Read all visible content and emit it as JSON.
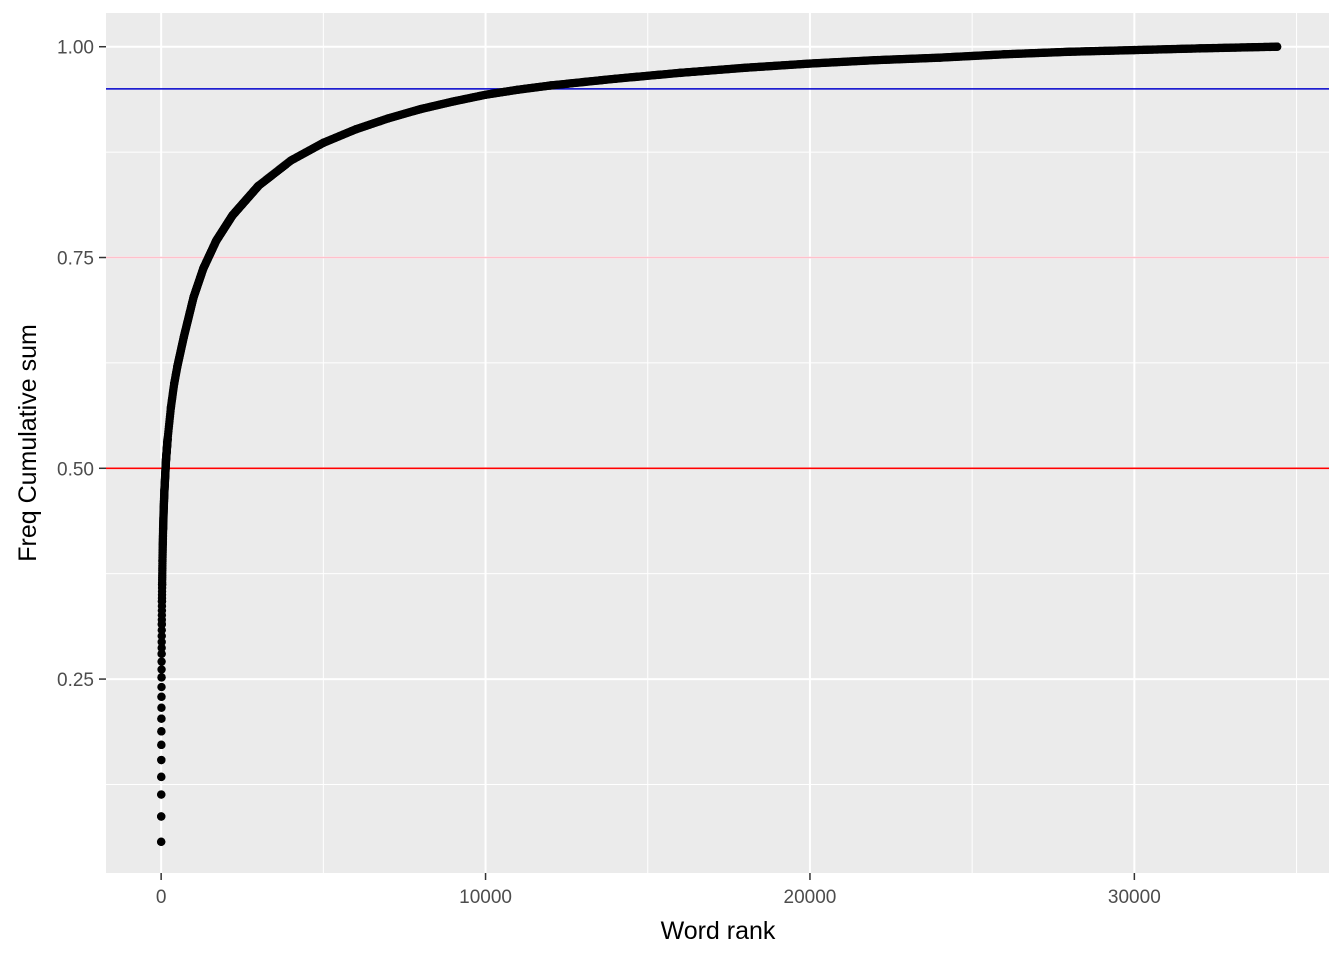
{
  "chart_data": {
    "type": "scatter",
    "xlabel": "Word rank",
    "ylabel": "Freq Cumulative sum",
    "xlim": [
      -1700,
      36000
    ],
    "ylim": [
      0.02,
      1.04
    ],
    "x_ticks": [
      {
        "value": 0,
        "label": "0"
      },
      {
        "value": 10000,
        "label": "10000"
      },
      {
        "value": 20000,
        "label": "20000"
      },
      {
        "value": 30000,
        "label": "30000"
      }
    ],
    "x_minor_ticks": [
      5000,
      15000,
      25000,
      35000
    ],
    "y_ticks": [
      {
        "value": 0.25,
        "label": "0.25"
      },
      {
        "value": 0.5,
        "label": "0.50"
      },
      {
        "value": 0.75,
        "label": "0.75"
      },
      {
        "value": 1.0,
        "label": "1.00"
      }
    ],
    "y_minor_ticks": [
      0.125,
      0.375,
      0.625,
      0.875
    ],
    "grid": true,
    "panel_background": "#ebebeb",
    "grid_color": "#ffffff",
    "reference_lines": [
      {
        "y": 0.95,
        "color": "#0000cd"
      },
      {
        "y": 0.75,
        "color": "#ffc0cb"
      },
      {
        "y": 0.5,
        "color": "#ff0000"
      }
    ],
    "point_color": "#000000",
    "x_max": 34400,
    "series": [
      {
        "points": [
          [
            1,
            0.057
          ],
          [
            2,
            0.087
          ],
          [
            3,
            0.113
          ],
          [
            4,
            0.134
          ],
          [
            5,
            0.154
          ],
          [
            6,
            0.172
          ],
          [
            7,
            0.188
          ],
          [
            8,
            0.203
          ],
          [
            10,
            0.229
          ],
          [
            12,
            0.252
          ],
          [
            15,
            0.28
          ],
          [
            20,
            0.315
          ],
          [
            25,
            0.342
          ],
          [
            30,
            0.362
          ],
          [
            40,
            0.39
          ],
          [
            50,
            0.41
          ],
          [
            60,
            0.428
          ],
          [
            80,
            0.453
          ],
          [
            100,
            0.473
          ],
          [
            150,
            0.51
          ],
          [
            200,
            0.535
          ],
          [
            300,
            0.572
          ],
          [
            400,
            0.6
          ],
          [
            500,
            0.621
          ],
          [
            700,
            0.656
          ],
          [
            1000,
            0.703
          ],
          [
            1300,
            0.737
          ],
          [
            1700,
            0.77
          ],
          [
            2200,
            0.8
          ],
          [
            3000,
            0.835
          ],
          [
            4000,
            0.865
          ],
          [
            5000,
            0.886
          ],
          [
            6000,
            0.902
          ],
          [
            7000,
            0.915
          ],
          [
            8000,
            0.926
          ],
          [
            9000,
            0.935
          ],
          [
            10000,
            0.943
          ],
          [
            11000,
            0.949
          ],
          [
            12000,
            0.954
          ],
          [
            14000,
            0.962
          ],
          [
            16000,
            0.969
          ],
          [
            18000,
            0.975
          ],
          [
            20000,
            0.98
          ],
          [
            22000,
            0.984
          ],
          [
            24000,
            0.987
          ],
          [
            26000,
            0.991
          ],
          [
            28000,
            0.994
          ],
          [
            30000,
            0.996
          ],
          [
            32000,
            0.998
          ],
          [
            34400,
            1.0
          ]
        ]
      }
    ]
  }
}
